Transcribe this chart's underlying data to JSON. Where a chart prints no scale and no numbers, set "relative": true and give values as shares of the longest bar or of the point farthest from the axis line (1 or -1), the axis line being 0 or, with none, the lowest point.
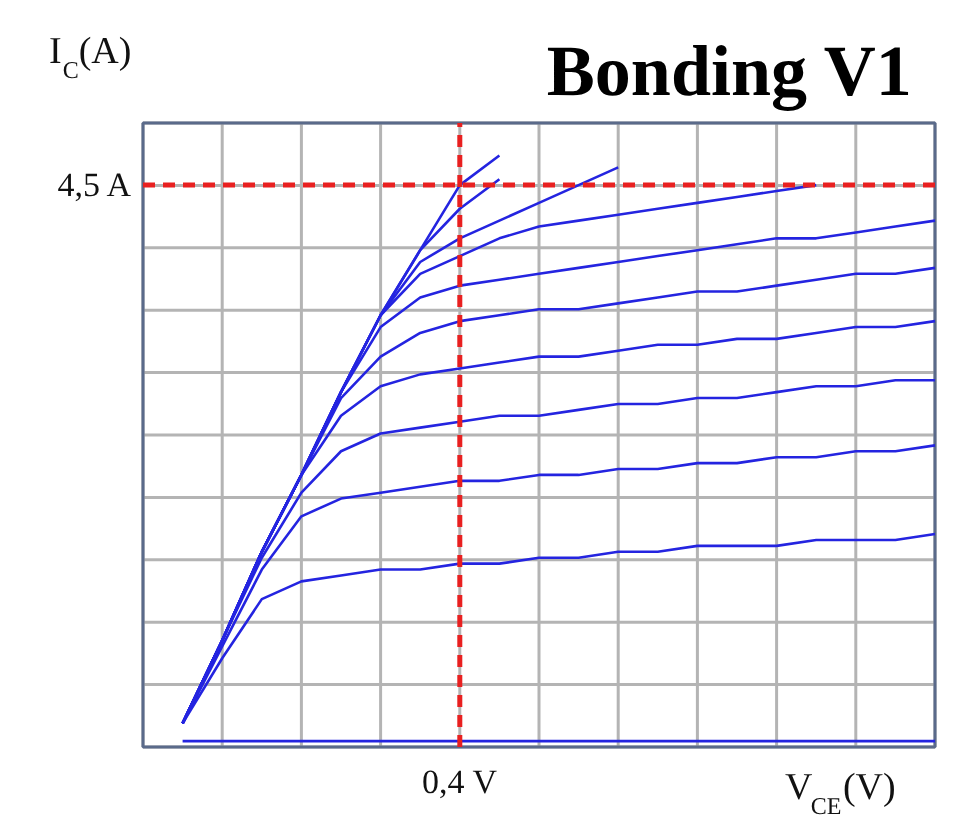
{
  "chart_data": {
    "type": "line",
    "title": "Bonding V1",
    "xlabel": "V$_{CE}$(V)",
    "ylabel": "I$_{C}$(A)",
    "relative": true,
    "categories": [
      null,
      null,
      null,
      null,
      null,
      null,
      null,
      null,
      null,
      null,
      null,
      null,
      null,
      null,
      null,
      null,
      null,
      null,
      null,
      null,
      null
    ],
    "grid": true,
    "line_style": "solid",
    "annotations": [
      "0,4 V"
    ],
    "ref_lines": [
      {
        "axis": "y",
        "value": 0.95,
        "label": "4,5 A",
        "color": "#e82020",
        "line_style": "dashed"
      }
    ],
    "series": [
      {
        "color": "#2424e0",
        "values": [
          null,
          0.01,
          0.01,
          0.01,
          0.01,
          0.01,
          0.01,
          0.01,
          0.01,
          0.01,
          0.01,
          0.01,
          0.01,
          0.01,
          0.01,
          0.01,
          0.01,
          0.01,
          0.01,
          0.01,
          0.01
        ]
      },
      {
        "color": "#2424e0",
        "values": [
          null,
          0.04,
          0.15,
          0.25,
          0.28,
          0.29,
          0.3,
          0.3,
          0.31,
          0.31,
          0.32,
          0.32,
          0.33,
          0.33,
          0.34,
          0.34,
          0.34,
          0.35,
          0.35,
          0.35,
          0.36
        ]
      },
      {
        "color": "#2424e0",
        "values": [
          null,
          0.04,
          0.17,
          0.3,
          0.39,
          0.42,
          0.43,
          0.44,
          0.45,
          0.45,
          0.46,
          0.46,
          0.47,
          0.47,
          0.48,
          0.48,
          0.49,
          0.49,
          0.5,
          0.5,
          0.51
        ]
      },
      {
        "color": "#2424e0",
        "values": [
          null,
          0.04,
          0.18,
          0.32,
          0.43,
          0.5,
          0.53,
          0.54,
          0.55,
          0.56,
          0.56,
          0.57,
          0.58,
          0.58,
          0.59,
          0.59,
          0.6,
          0.61,
          0.61,
          0.62,
          0.62
        ]
      },
      {
        "color": "#2424e0",
        "values": [
          null,
          0.04,
          0.18,
          0.33,
          0.46,
          0.56,
          0.61,
          0.63,
          0.64,
          0.65,
          0.66,
          0.66,
          0.67,
          0.68,
          0.68,
          0.69,
          0.69,
          0.7,
          0.71,
          0.71,
          0.72
        ]
      },
      {
        "color": "#2424e0",
        "values": [
          null,
          0.04,
          0.18,
          0.33,
          0.46,
          0.59,
          0.66,
          0.7,
          0.72,
          0.73,
          0.74,
          0.74,
          0.75,
          0.76,
          0.77,
          0.77,
          0.78,
          0.79,
          0.8,
          0.8,
          0.81
        ]
      },
      {
        "color": "#2424e0",
        "values": [
          null,
          0.04,
          0.18,
          0.33,
          0.46,
          0.6,
          0.71,
          0.76,
          0.78,
          0.79,
          0.8,
          0.81,
          0.82,
          0.83,
          0.84,
          0.85,
          0.86,
          0.86,
          0.87,
          0.88,
          0.89
        ]
      },
      {
        "color": "#2424e0",
        "values": [
          null,
          0.04,
          0.18,
          0.33,
          0.46,
          0.6,
          0.73,
          0.8,
          0.83,
          0.86,
          0.88,
          0.89,
          0.9,
          0.91,
          0.92,
          0.93,
          0.94,
          0.95,
          null,
          null,
          null
        ]
      },
      {
        "color": "#2424e0",
        "values": [
          null,
          0.04,
          0.18,
          0.33,
          0.46,
          0.6,
          0.73,
          0.82,
          0.86,
          0.89,
          0.92,
          0.95,
          0.98,
          null,
          null,
          null,
          null,
          null,
          null,
          null,
          null
        ]
      },
      {
        "color": "#2424e0",
        "values": [
          null,
          0.04,
          0.18,
          0.33,
          0.46,
          0.6,
          0.73,
          0.84,
          0.91,
          0.96,
          null,
          null,
          null,
          null,
          null,
          null,
          null,
          null,
          null,
          null,
          null
        ]
      },
      {
        "color": "#2424e0",
        "values": [
          null,
          0.04,
          0.18,
          0.33,
          0.46,
          0.6,
          0.73,
          0.84,
          0.95,
          1.0,
          null,
          null,
          null,
          null,
          null,
          null,
          null,
          null,
          null,
          null,
          null
        ]
      }
    ]
  }
}
